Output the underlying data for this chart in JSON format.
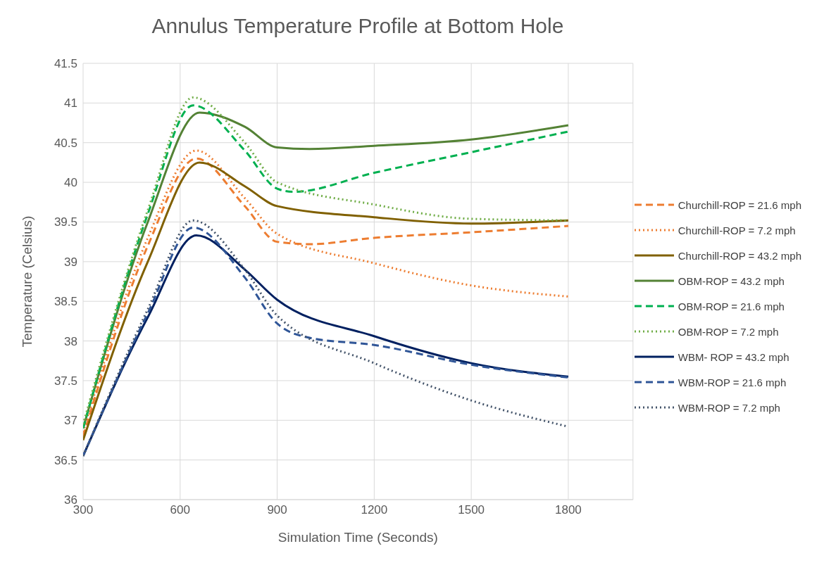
{
  "chart_data": {
    "type": "line",
    "title": "Annulus Temperature Profile at Bottom Hole",
    "xlabel": "Simulation Time (Seconds)",
    "ylabel": "Temperature (Celsius)",
    "xlim": [
      300,
      2000
    ],
    "xticks": [
      300,
      600,
      900,
      1200,
      1500,
      1800
    ],
    "ylim": [
      36,
      41.5
    ],
    "yticks": [
      36,
      36.5,
      37,
      37.5,
      38,
      38.5,
      39,
      39.5,
      40,
      40.5,
      41,
      41.5
    ],
    "grid": true,
    "legend": "right",
    "marker": "none",
    "series": [
      {
        "name": "Churchill-ROP = 21.6 mph",
        "color": "#ed7d31",
        "line_style": "dashed",
        "x": [
          300,
          500,
          650,
          800,
          900,
          1000,
          1200,
          1500,
          1800
        ],
        "values": [
          36.8,
          39.2,
          40.3,
          39.7,
          39.25,
          39.22,
          39.3,
          39.37,
          39.45
        ]
      },
      {
        "name": "Churchill-ROP = 7.2 mph",
        "color": "#ed7d31",
        "line_style": "dotted",
        "x": [
          300,
          500,
          650,
          800,
          900,
          1200,
          1500,
          1800
        ],
        "values": [
          36.85,
          39.3,
          40.4,
          39.8,
          39.35,
          38.98,
          38.7,
          38.56
        ]
      },
      {
        "name": "Churchill-ROP = 43.2 mph",
        "color": "#806000",
        "line_style": "solid",
        "x": [
          300,
          500,
          660,
          800,
          900,
          1200,
          1500,
          1800
        ],
        "values": [
          36.75,
          39.0,
          40.25,
          39.95,
          39.7,
          39.56,
          39.48,
          39.52
        ]
      },
      {
        "name": "OBM-ROP = 43.2 mph",
        "color": "#548235",
        "line_style": "solid",
        "x": [
          300,
          500,
          660,
          800,
          900,
          1000,
          1200,
          1500,
          1800
        ],
        "values": [
          36.9,
          39.5,
          40.88,
          40.7,
          40.44,
          40.42,
          40.46,
          40.54,
          40.72
        ]
      },
      {
        "name": "OBM-ROP = 21.6 mph",
        "color": "#00b050",
        "line_style": "dashed",
        "x": [
          300,
          500,
          640,
          800,
          900,
          950,
          1200,
          1500,
          1800
        ],
        "values": [
          36.9,
          39.6,
          40.97,
          40.4,
          39.92,
          39.88,
          40.12,
          40.38,
          40.64
        ]
      },
      {
        "name": "OBM-ROP = 7.2 mph",
        "color": "#70ad47",
        "line_style": "dotted",
        "x": [
          300,
          500,
          640,
          800,
          900,
          1200,
          1500,
          1800
        ],
        "values": [
          36.95,
          39.65,
          41.07,
          40.5,
          40.0,
          39.72,
          39.54,
          39.52
        ]
      },
      {
        "name": "WBM- ROP = 43.2 mph",
        "color": "#002060",
        "line_style": "solid",
        "x": [
          300,
          500,
          650,
          800,
          900,
          1200,
          1500,
          1800
        ],
        "values": [
          36.55,
          38.3,
          39.33,
          38.9,
          38.52,
          38.06,
          37.72,
          37.55
        ]
      },
      {
        "name": "WBM-ROP = 21.6 mph",
        "color": "#2f5597",
        "line_style": "dashed",
        "x": [
          300,
          500,
          640,
          800,
          900,
          1000,
          1200,
          1500,
          1800
        ],
        "values": [
          36.55,
          38.35,
          39.43,
          38.8,
          38.22,
          38.04,
          37.95,
          37.7,
          37.54
        ]
      },
      {
        "name": "WBM-ROP = 7.2 mph",
        "color": "#44546a",
        "line_style": "dotted",
        "x": [
          300,
          500,
          640,
          800,
          900,
          1200,
          1500,
          1800
        ],
        "values": [
          36.55,
          38.4,
          39.52,
          38.9,
          38.32,
          37.72,
          37.25,
          36.92
        ]
      }
    ]
  }
}
